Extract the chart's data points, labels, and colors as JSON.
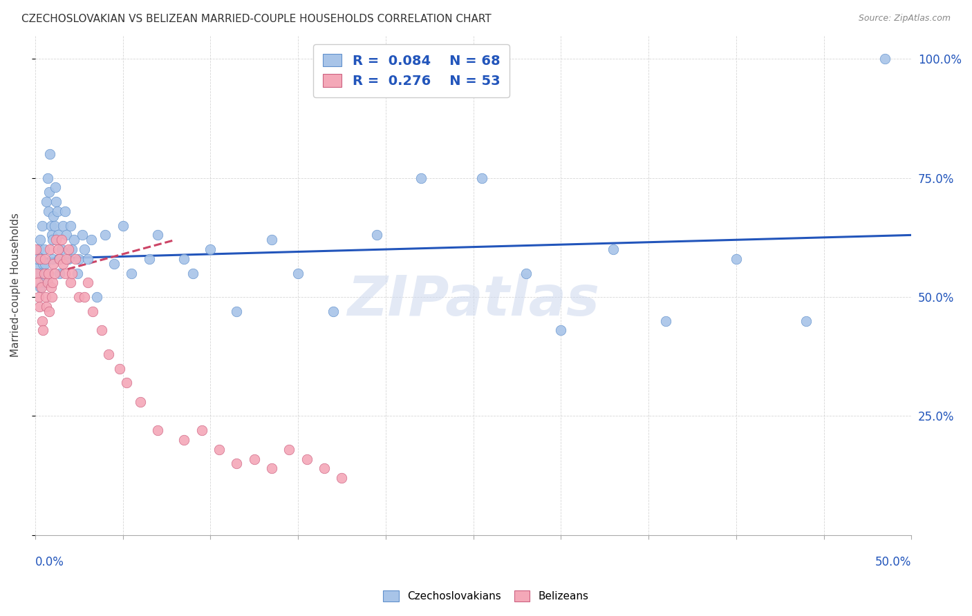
{
  "title": "CZECHOSLOVAKIAN VS BELIZEAN MARRIED-COUPLE HOUSEHOLDS CORRELATION CHART",
  "source": "Source: ZipAtlas.com",
  "ylabel": "Married-couple Households",
  "watermark": "ZIPatlas",
  "blue_R": 0.084,
  "blue_N": 68,
  "pink_R": 0.276,
  "pink_N": 53,
  "blue_color": "#a8c4e8",
  "pink_color": "#f4a8b8",
  "blue_edge_color": "#6090cc",
  "pink_edge_color": "#cc6080",
  "blue_line_color": "#2255bb",
  "pink_line_color": "#cc4466",
  "legend_label_blue": "Czechoslovakians",
  "legend_label_pink": "Belizeans",
  "xmin": 0.0,
  "xmax": 50.0,
  "ymin": 0.0,
  "ymax": 105.0,
  "blue_scatter_x": [
    0.1,
    0.15,
    0.2,
    0.25,
    0.3,
    0.3,
    0.35,
    0.4,
    0.45,
    0.5,
    0.5,
    0.55,
    0.6,
    0.65,
    0.7,
    0.75,
    0.8,
    0.85,
    0.9,
    0.95,
    1.0,
    1.0,
    1.05,
    1.1,
    1.15,
    1.2,
    1.25,
    1.3,
    1.35,
    1.4,
    1.5,
    1.6,
    1.7,
    1.8,
    1.9,
    2.0,
    2.1,
    2.2,
    2.4,
    2.5,
    2.7,
    2.8,
    3.0,
    3.2,
    3.5,
    4.0,
    4.5,
    5.0,
    5.5,
    6.5,
    7.0,
    8.5,
    9.0,
    10.0,
    11.5,
    13.5,
    15.0,
    17.0,
    19.5,
    22.0,
    25.5,
    28.0,
    30.0,
    33.0,
    36.0,
    40.0,
    44.0,
    48.5
  ],
  "blue_scatter_y": [
    56,
    58,
    60,
    55,
    62,
    52,
    58,
    65,
    57,
    60,
    53,
    57,
    55,
    70,
    75,
    68,
    72,
    80,
    65,
    63,
    58,
    62,
    67,
    65,
    73,
    70,
    68,
    63,
    58,
    55,
    60,
    65,
    68,
    63,
    58,
    65,
    60,
    62,
    55,
    58,
    63,
    60,
    58,
    62,
    50,
    63,
    57,
    65,
    55,
    58,
    63,
    58,
    55,
    60,
    47,
    62,
    55,
    47,
    63,
    75,
    75,
    55,
    43,
    60,
    45,
    58,
    45,
    100
  ],
  "pink_scatter_x": [
    0.05,
    0.1,
    0.15,
    0.2,
    0.25,
    0.3,
    0.35,
    0.4,
    0.45,
    0.5,
    0.55,
    0.6,
    0.65,
    0.7,
    0.75,
    0.8,
    0.85,
    0.9,
    0.95,
    1.0,
    1.05,
    1.1,
    1.2,
    1.3,
    1.4,
    1.5,
    1.6,
    1.7,
    1.8,
    1.9,
    2.0,
    2.1,
    2.3,
    2.5,
    2.8,
    3.0,
    3.3,
    3.8,
    4.2,
    4.8,
    5.2,
    6.0,
    7.0,
    8.5,
    9.5,
    10.5,
    11.5,
    12.5,
    13.5,
    14.5,
    15.5,
    16.5,
    17.5
  ],
  "pink_scatter_y": [
    60,
    55,
    53,
    50,
    48,
    58,
    52,
    45,
    43,
    55,
    58,
    50,
    48,
    53,
    55,
    47,
    60,
    52,
    50,
    53,
    57,
    55,
    62,
    60,
    58,
    62,
    57,
    55,
    58,
    60,
    53,
    55,
    58,
    50,
    50,
    53,
    47,
    43,
    38,
    35,
    32,
    28,
    22,
    20,
    22,
    18,
    15,
    16,
    14,
    18,
    16,
    14,
    12
  ],
  "blue_line_x0": 0.0,
  "blue_line_x1": 50.0,
  "blue_line_y0": 58.0,
  "blue_line_y1": 63.0,
  "pink_line_x0": 0.0,
  "pink_line_x1": 8.0,
  "pink_line_y0": 54.0,
  "pink_line_y1": 62.0
}
